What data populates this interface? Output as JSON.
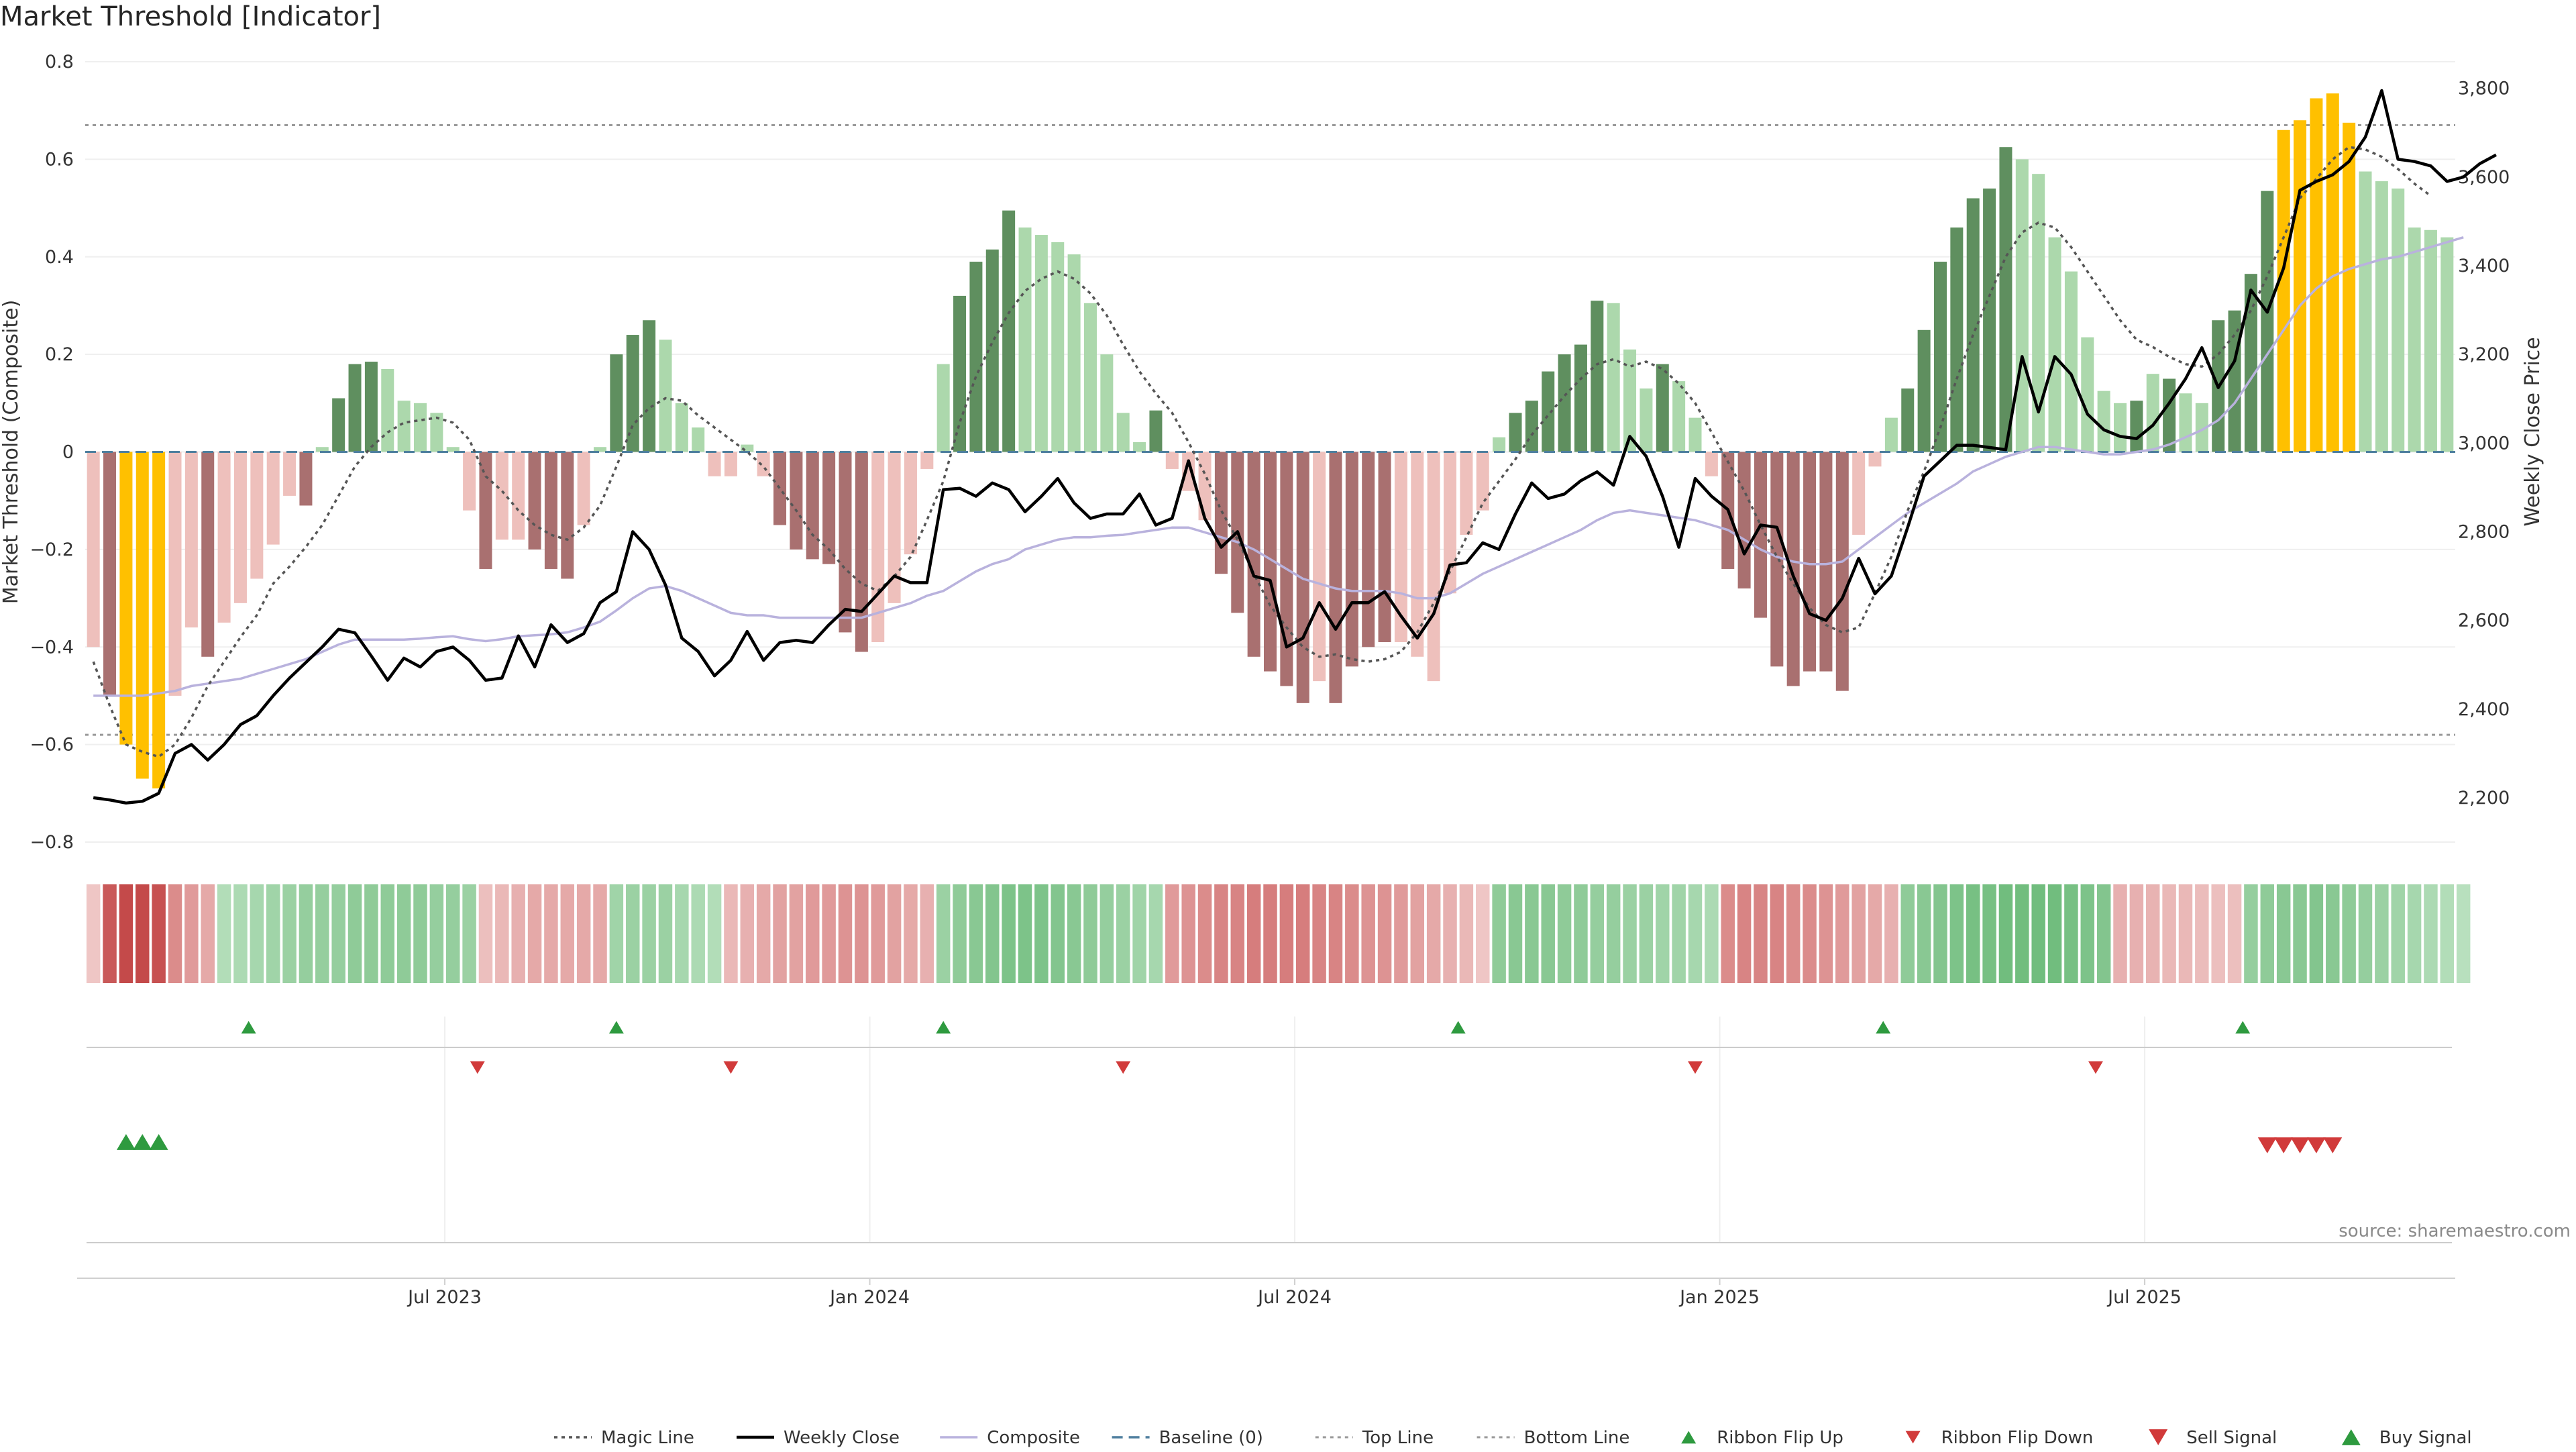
{
  "title": "Market Threshold [Indicator]",
  "source": "source: sharemaestro.com",
  "colors": {
    "orange": "#ffc000",
    "dark_green": "#5f8f5f",
    "light_green": "#acd8ac",
    "dark_red": "#a97070",
    "light_red": "#eec0bc",
    "weekly_close": "#000000",
    "composite": "#b9b2dd",
    "magic_line": "#555555",
    "baseline": "#4e7f9e",
    "threshold_line": "#999999",
    "buy": "#2e9a3f",
    "sell": "#d13a3a"
  },
  "chart_data": {
    "type": "bar",
    "y_left": {
      "label": "Market Threshold (Composite)",
      "range": [
        -0.8,
        0.8
      ],
      "ticks": [
        "0.8",
        "0.6",
        "0.4",
        "0.2",
        "0",
        "−0.2",
        "−0.4",
        "−0.6",
        "−0.8"
      ]
    },
    "y_right": {
      "label": "Weekly Close Price",
      "range": [
        2100,
        3860
      ],
      "ticks": [
        "3,800",
        "3,600",
        "3,400",
        "3,200",
        "3,000",
        "2,800",
        "2,600",
        "2,400",
        "2,200"
      ]
    },
    "x_ticks": [
      {
        "label": "Jul 2023",
        "week": 21.5
      },
      {
        "label": "Jan 2024",
        "week": 47.5
      },
      {
        "label": "Jul 2024",
        "week": 73.5
      },
      {
        "label": "Jan 2025",
        "week": 99.5
      },
      {
        "label": "Jul 2025",
        "week": 125.5
      }
    ],
    "top_line": 0.67,
    "bottom_line": -0.58,
    "baseline": 0,
    "bars": [
      -0.4,
      -0.5,
      -0.6,
      -0.67,
      -0.69,
      -0.5,
      -0.36,
      -0.42,
      -0.35,
      -0.31,
      -0.26,
      -0.19,
      -0.09,
      -0.11,
      0.01,
      0.11,
      0.18,
      0.185,
      0.17,
      0.105,
      0.1,
      0.08,
      0.01,
      -0.12,
      -0.24,
      -0.18,
      -0.18,
      -0.2,
      -0.24,
      -0.26,
      -0.15,
      0.01,
      0.2,
      0.24,
      0.27,
      0.23,
      0.1,
      0.05,
      -0.05,
      -0.05,
      0.015,
      -0.05,
      -0.15,
      -0.2,
      -0.22,
      -0.23,
      -0.37,
      -0.41,
      -0.39,
      -0.31,
      -0.21,
      -0.035,
      0.18,
      0.32,
      0.39,
      0.415,
      0.495,
      0.46,
      0.445,
      0.43,
      0.405,
      0.305,
      0.2,
      0.08,
      0.02,
      0.085,
      -0.035,
      -0.08,
      -0.14,
      -0.25,
      -0.33,
      -0.42,
      -0.45,
      -0.48,
      -0.515,
      -0.47,
      -0.515,
      -0.44,
      -0.4,
      -0.39,
      -0.39,
      -0.42,
      -0.47,
      -0.29,
      -0.17,
      -0.12,
      0.03,
      0.08,
      0.105,
      0.165,
      0.2,
      0.22,
      0.31,
      0.305,
      0.21,
      0.13,
      0.18,
      0.145,
      0.07,
      -0.05,
      -0.24,
      -0.28,
      -0.34,
      -0.44,
      -0.48,
      -0.45,
      -0.45,
      -0.49,
      -0.17,
      -0.03,
      0.07,
      0.13,
      0.25,
      0.39,
      0.46,
      0.52,
      0.54,
      0.625,
      0.6,
      0.57,
      0.44,
      0.37,
      0.235,
      0.125,
      0.1,
      0.105,
      0.16,
      0.15,
      0.12,
      0.1,
      0.27,
      0.29,
      0.365,
      0.535,
      0.66,
      0.68,
      0.725,
      0.735,
      0.675,
      0.575,
      0.555,
      0.54,
      0.46,
      0.455,
      0.44
    ],
    "bar_colors": [
      "light_red",
      "dark_red",
      "orange",
      "orange",
      "orange",
      "light_red",
      "light_red",
      "dark_red",
      "light_red",
      "light_red",
      "light_red",
      "light_red",
      "light_red",
      "dark_red",
      "light_green",
      "dark_green",
      "dark_green",
      "dark_green",
      "light_green",
      "light_green",
      "light_green",
      "light_green",
      "light_green",
      "light_red",
      "dark_red",
      "light_red",
      "light_red",
      "dark_red",
      "dark_red",
      "dark_red",
      "light_red",
      "light_green",
      "dark_green",
      "dark_green",
      "dark_green",
      "light_green",
      "light_green",
      "light_green",
      "light_red",
      "light_red",
      "light_green",
      "light_red",
      "dark_red",
      "dark_red",
      "dark_red",
      "dark_red",
      "dark_red",
      "dark_red",
      "light_red",
      "light_red",
      "light_red",
      "light_red",
      "light_green",
      "dark_green",
      "dark_green",
      "dark_green",
      "dark_green",
      "light_green",
      "light_green",
      "light_green",
      "light_green",
      "light_green",
      "light_green",
      "light_green",
      "light_green",
      "dark_green",
      "light_red",
      "light_red",
      "light_red",
      "dark_red",
      "dark_red",
      "dark_red",
      "dark_red",
      "dark_red",
      "dark_red",
      "light_red",
      "dark_red",
      "dark_red",
      "dark_red",
      "dark_red",
      "light_red",
      "light_red",
      "light_red",
      "light_red",
      "light_red",
      "light_red",
      "light_green",
      "dark_green",
      "dark_green",
      "dark_green",
      "dark_green",
      "dark_green",
      "dark_green",
      "light_green",
      "light_green",
      "light_green",
      "dark_green",
      "light_green",
      "light_green",
      "light_red",
      "dark_red",
      "dark_red",
      "dark_red",
      "dark_red",
      "dark_red",
      "dark_red",
      "dark_red",
      "dark_red",
      "light_red",
      "light_red",
      "light_green",
      "dark_green",
      "dark_green",
      "dark_green",
      "dark_green",
      "dark_green",
      "dark_green",
      "dark_green",
      "light_green",
      "light_green",
      "light_green",
      "light_green",
      "light_green",
      "light_green",
      "light_green",
      "dark_green",
      "light_green",
      "dark_green",
      "light_green",
      "light_green",
      "dark_green",
      "dark_green",
      "dark_green",
      "dark_green",
      "orange",
      "orange",
      "orange",
      "orange",
      "orange",
      "light_green",
      "light_green",
      "light_green",
      "light_green",
      "light_green",
      "light_green"
    ],
    "weekly_close": [
      2200,
      2195,
      2188,
      2192,
      2210,
      2300,
      2320,
      2285,
      2320,
      2365,
      2385,
      2430,
      2470,
      2505,
      2540,
      2580,
      2572,
      2520,
      2465,
      2515,
      2495,
      2530,
      2540,
      2510,
      2465,
      2470,
      2565,
      2495,
      2590,
      2550,
      2570,
      2640,
      2665,
      2800,
      2760,
      2680,
      2560,
      2530,
      2475,
      2510,
      2575,
      2510,
      2550,
      2555,
      2550,
      2590,
      2625,
      2620,
      2660,
      2700,
      2685,
      2685,
      2895,
      2898,
      2880,
      2910,
      2895,
      2845,
      2880,
      2920,
      2865,
      2830,
      2840,
      2840,
      2885,
      2815,
      2830,
      2960,
      2830,
      2765,
      2800,
      2700,
      2690,
      2540,
      2560,
      2640,
      2580,
      2640,
      2640,
      2665,
      2610,
      2560,
      2615,
      2725,
      2730,
      2775,
      2760,
      2840,
      2910,
      2875,
      2885,
      2915,
      2935,
      2905,
      3015,
      2970,
      2880,
      2765,
      2920,
      2880,
      2850,
      2750,
      2815,
      2810,
      2700,
      2615,
      2600,
      2650,
      2740,
      2660,
      2700,
      2810,
      2925,
      2960,
      2995,
      2995,
      2990,
      2985,
      3195,
      3070,
      3195,
      3155,
      3065,
      3030,
      3015,
      3010,
      3040,
      3090,
      3145,
      3215,
      3125,
      3185,
      3345,
      3295,
      3395,
      3570,
      3590,
      3605,
      3635,
      3690,
      3795,
      3640,
      3635,
      3625,
      3590,
      3600,
      3630,
      3650
    ],
    "magic_line": [
      -0.43,
      -0.52,
      -0.6,
      -0.615,
      -0.625,
      -0.6,
      -0.545,
      -0.48,
      -0.43,
      -0.38,
      -0.335,
      -0.27,
      -0.235,
      -0.195,
      -0.15,
      -0.09,
      -0.03,
      0.01,
      0.04,
      0.06,
      0.065,
      0.07,
      0.06,
      0.025,
      -0.05,
      -0.08,
      -0.12,
      -0.15,
      -0.17,
      -0.18,
      -0.155,
      -0.11,
      -0.03,
      0.055,
      0.09,
      0.11,
      0.105,
      0.075,
      0.05,
      0.025,
      0.0,
      -0.03,
      -0.075,
      -0.12,
      -0.17,
      -0.2,
      -0.24,
      -0.27,
      -0.285,
      -0.255,
      -0.215,
      -0.14,
      -0.06,
      0.06,
      0.155,
      0.225,
      0.285,
      0.33,
      0.355,
      0.37,
      0.355,
      0.325,
      0.28,
      0.22,
      0.165,
      0.12,
      0.08,
      0.02,
      -0.045,
      -0.12,
      -0.18,
      -0.25,
      -0.315,
      -0.36,
      -0.4,
      -0.42,
      -0.415,
      -0.425,
      -0.43,
      -0.425,
      -0.41,
      -0.37,
      -0.31,
      -0.245,
      -0.175,
      -0.105,
      -0.06,
      -0.015,
      0.035,
      0.075,
      0.115,
      0.15,
      0.18,
      0.19,
      0.175,
      0.185,
      0.17,
      0.14,
      0.1,
      0.04,
      -0.02,
      -0.08,
      -0.15,
      -0.215,
      -0.27,
      -0.32,
      -0.355,
      -0.37,
      -0.36,
      -0.29,
      -0.215,
      -0.12,
      -0.04,
      0.05,
      0.15,
      0.24,
      0.32,
      0.4,
      0.45,
      0.47,
      0.46,
      0.42,
      0.37,
      0.32,
      0.27,
      0.23,
      0.215,
      0.195,
      0.18,
      0.175,
      0.2,
      0.24,
      0.29,
      0.36,
      0.44,
      0.52,
      0.56,
      0.6,
      0.625,
      0.62,
      0.605,
      0.58,
      0.55,
      0.525
    ],
    "composite": [
      -0.5,
      -0.5,
      -0.5,
      -0.5,
      -0.495,
      -0.49,
      -0.48,
      -0.475,
      -0.47,
      -0.465,
      -0.455,
      -0.445,
      -0.435,
      -0.425,
      -0.41,
      -0.395,
      -0.385,
      -0.385,
      -0.385,
      -0.385,
      -0.383,
      -0.38,
      -0.378,
      -0.384,
      -0.388,
      -0.384,
      -0.378,
      -0.376,
      -0.374,
      -0.37,
      -0.36,
      -0.348,
      -0.325,
      -0.3,
      -0.28,
      -0.275,
      -0.285,
      -0.3,
      -0.315,
      -0.33,
      -0.335,
      -0.335,
      -0.34,
      -0.34,
      -0.34,
      -0.34,
      -0.34,
      -0.34,
      -0.33,
      -0.32,
      -0.31,
      -0.295,
      -0.285,
      -0.265,
      -0.245,
      -0.23,
      -0.22,
      -0.2,
      -0.19,
      -0.18,
      -0.175,
      -0.175,
      -0.172,
      -0.17,
      -0.165,
      -0.16,
      -0.155,
      -0.155,
      -0.165,
      -0.175,
      -0.185,
      -0.2,
      -0.22,
      -0.24,
      -0.26,
      -0.27,
      -0.28,
      -0.285,
      -0.285,
      -0.285,
      -0.29,
      -0.3,
      -0.3,
      -0.29,
      -0.27,
      -0.25,
      -0.235,
      -0.22,
      -0.205,
      -0.19,
      -0.175,
      -0.16,
      -0.14,
      -0.125,
      -0.12,
      -0.125,
      -0.13,
      -0.135,
      -0.14,
      -0.15,
      -0.16,
      -0.18,
      -0.2,
      -0.215,
      -0.225,
      -0.23,
      -0.23,
      -0.225,
      -0.2,
      -0.175,
      -0.15,
      -0.125,
      -0.105,
      -0.085,
      -0.065,
      -0.04,
      -0.025,
      -0.01,
      0.0,
      0.01,
      0.01,
      0.005,
      0.0,
      -0.005,
      -0.005,
      0.0,
      0.005,
      0.015,
      0.03,
      0.045,
      0.065,
      0.1,
      0.15,
      0.2,
      0.25,
      0.3,
      0.335,
      0.36,
      0.375,
      0.385,
      0.395,
      0.4,
      0.41,
      0.42,
      0.43,
      0.44
    ],
    "ribbon": [
      -0.15,
      -0.9,
      -1.0,
      -1.0,
      -0.95,
      -0.55,
      -0.45,
      -0.35,
      0.3,
      0.35,
      0.4,
      0.45,
      0.5,
      0.55,
      0.55,
      0.55,
      0.6,
      0.6,
      0.6,
      0.6,
      0.6,
      0.55,
      0.55,
      0.5,
      -0.2,
      -0.25,
      -0.3,
      -0.35,
      -0.35,
      -0.35,
      -0.35,
      -0.35,
      0.45,
      0.5,
      0.5,
      0.5,
      0.4,
      0.35,
      0.3,
      -0.25,
      -0.3,
      -0.35,
      -0.4,
      -0.4,
      -0.45,
      -0.45,
      -0.5,
      -0.5,
      -0.45,
      -0.4,
      -0.35,
      -0.3,
      0.5,
      0.6,
      0.65,
      0.7,
      0.75,
      0.75,
      0.75,
      0.7,
      0.65,
      0.6,
      0.55,
      0.5,
      0.45,
      0.4,
      -0.45,
      -0.5,
      -0.55,
      -0.6,
      -0.6,
      -0.65,
      -0.65,
      -0.65,
      -0.65,
      -0.6,
      -0.6,
      -0.55,
      -0.5,
      -0.5,
      -0.45,
      -0.4,
      -0.35,
      -0.3,
      -0.25,
      -0.15,
      0.6,
      0.65,
      0.65,
      0.65,
      0.6,
      0.6,
      0.55,
      0.55,
      0.5,
      0.5,
      0.45,
      0.45,
      0.4,
      0.35,
      -0.55,
      -0.6,
      -0.6,
      -0.6,
      -0.55,
      -0.55,
      -0.5,
      -0.45,
      -0.4,
      -0.35,
      -0.3,
      0.6,
      0.65,
      0.7,
      0.75,
      0.8,
      0.8,
      0.85,
      0.85,
      0.85,
      0.85,
      0.8,
      0.75,
      0.7,
      -0.3,
      -0.3,
      -0.28,
      -0.25,
      -0.25,
      -0.22,
      -0.2,
      -0.2,
      0.55,
      0.6,
      0.65,
      0.65,
      0.7,
      0.65,
      0.6,
      0.55,
      0.5,
      0.45,
      0.4,
      0.35,
      0.3,
      0.25
    ],
    "ribbon_flip_up": [
      9.5,
      32,
      52,
      83.5,
      109.5,
      131.5
    ],
    "ribbon_flip_down": [
      23.5,
      39,
      63,
      98,
      122.5
    ],
    "buy_signals": [
      2,
      3,
      4
    ],
    "sell_signals": [
      133,
      134,
      135,
      136,
      137
    ],
    "legend": [
      {
        "label": "Magic Line",
        "kind": "magic"
      },
      {
        "label": "Weekly Close",
        "kind": "close"
      },
      {
        "label": "Composite",
        "kind": "composite"
      },
      {
        "label": "Baseline (0)",
        "kind": "baseline"
      },
      {
        "label": "Top Line",
        "kind": "threshold"
      },
      {
        "label": "Bottom Line",
        "kind": "threshold"
      },
      {
        "label": "Ribbon Flip Up",
        "kind": "flip_up"
      },
      {
        "label": "Ribbon Flip Down",
        "kind": "flip_down"
      },
      {
        "label": "Sell Signal",
        "kind": "sell"
      },
      {
        "label": "Buy Signal",
        "kind": "buy"
      }
    ]
  }
}
